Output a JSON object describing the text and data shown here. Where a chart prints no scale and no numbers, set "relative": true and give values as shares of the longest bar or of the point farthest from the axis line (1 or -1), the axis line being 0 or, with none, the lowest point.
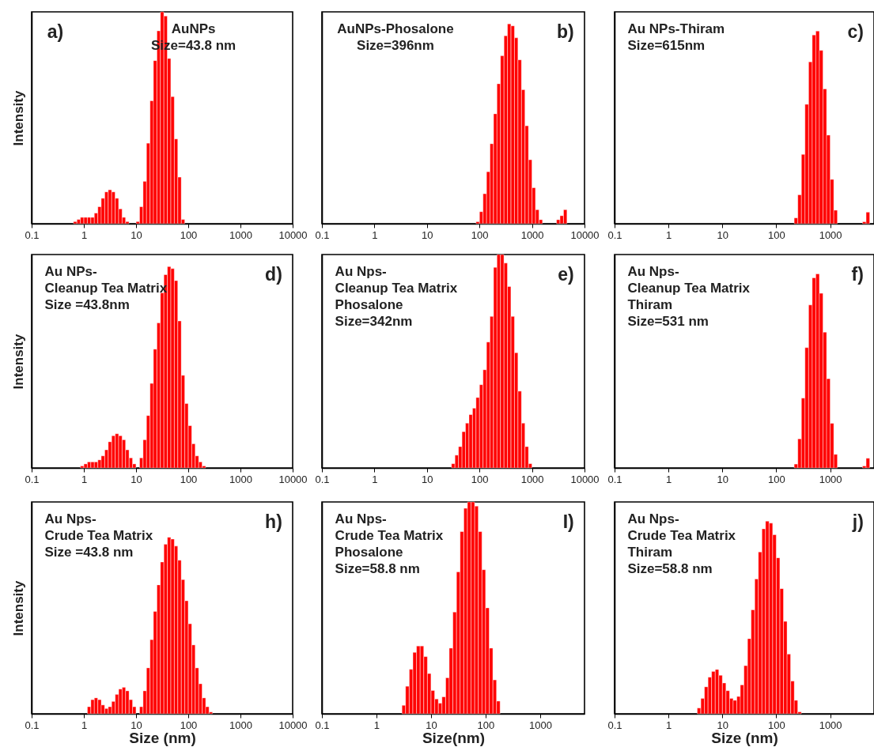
{
  "chart_data": [
    {
      "type": "bar",
      "relative": true,
      "log": "x",
      "tick_labels": "x",
      "ylabel": "Intensity",
      "color": "#ff0000",
      "xlim": [
        0.1,
        10000
      ],
      "xticks": [
        0.1,
        1,
        10,
        100,
        1000,
        10000
      ],
      "annotations": [
        "a)",
        "AuNPs",
        "Size=43.8 nm"
      ],
      "x": [
        0.681,
        0.795,
        0.926,
        1.08,
        1.26,
        1.47,
        1.71,
        2.0,
        2.32,
        2.71,
        3.16,
        3.68,
        4.3,
        5.01,
        5.84,
        6.81,
        10.8,
        12.6,
        14.7,
        17.1,
        20,
        23.2,
        27.1,
        31.6,
        36.8,
        43,
        50.1,
        58.4,
        68.1,
        79.5
      ],
      "values": [
        0.01,
        0.02,
        0.03,
        0.03,
        0.03,
        0.03,
        0.05,
        0.08,
        0.12,
        0.15,
        0.16,
        0.15,
        0.12,
        0.07,
        0.03,
        0.01,
        0.01,
        0.08,
        0.2,
        0.38,
        0.58,
        0.77,
        0.91,
        1.0,
        0.98,
        0.78,
        0.6,
        0.4,
        0.22,
        0.02
      ]
    },
    {
      "type": "bar",
      "relative": true,
      "log": "x",
      "tick_labels": "x",
      "color": "#ff0000",
      "xlim": [
        0.1,
        10000
      ],
      "xticks": [
        0.1,
        1,
        10,
        100,
        1000,
        10000
      ],
      "annotations": [
        "b)",
        "AuNPs-Phosalone",
        "Size=396nm"
      ],
      "x": [
        92.6,
        108,
        126,
        147,
        171,
        200,
        232,
        271,
        316,
        368,
        430,
        501,
        584,
        681,
        795,
        926,
        1080,
        1260,
        1470,
        3160,
        3680,
        4300
      ],
      "values": [
        0.01,
        0.06,
        0.15,
        0.26,
        0.4,
        0.55,
        0.7,
        0.84,
        0.94,
        1.0,
        0.99,
        0.93,
        0.82,
        0.67,
        0.49,
        0.32,
        0.18,
        0.07,
        0.02,
        0.02,
        0.04,
        0.07
      ]
    },
    {
      "type": "bar",
      "relative": true,
      "log": "x",
      "tick_labels": "x",
      "color": "#ff0000",
      "xlim": [
        0.1,
        6500
      ],
      "xticks": [
        0.1,
        1,
        10,
        100,
        1000
      ],
      "annotations": [
        "c)",
        "Au NPs-Thiram",
        "Size=615nm"
      ],
      "x": [
        232,
        271,
        316,
        368,
        430,
        501,
        584,
        681,
        795,
        926,
        1080,
        1260,
        4300,
        5010
      ],
      "values": [
        0.03,
        0.15,
        0.36,
        0.62,
        0.84,
        0.98,
        1.0,
        0.9,
        0.7,
        0.46,
        0.23,
        0.07,
        0.01,
        0.06
      ]
    },
    {
      "type": "bar",
      "relative": true,
      "log": "x",
      "tick_labels": "x",
      "ylabel": "Intensity",
      "color": "#ff0000",
      "xlim": [
        0.1,
        10000
      ],
      "xticks": [
        0.1,
        1,
        10,
        100,
        1000,
        10000
      ],
      "annotations": [
        "d)",
        "Au NPs-",
        "Cleanup Tea Matrix",
        "Size =43.8nm"
      ],
      "x": [
        0.926,
        1.08,
        1.26,
        1.47,
        1.71,
        2.0,
        2.32,
        2.71,
        3.16,
        3.68,
        4.3,
        5.01,
        5.84,
        6.81,
        7.95,
        9.26,
        12.6,
        14.7,
        17.1,
        20,
        23.2,
        27.1,
        31.6,
        36.8,
        43,
        50.1,
        58.4,
        68.1,
        79.5,
        92.6,
        108,
        126,
        147,
        171,
        200
      ],
      "values": [
        0.01,
        0.02,
        0.03,
        0.03,
        0.03,
        0.04,
        0.06,
        0.09,
        0.13,
        0.16,
        0.17,
        0.16,
        0.14,
        0.09,
        0.05,
        0.02,
        0.05,
        0.14,
        0.26,
        0.42,
        0.59,
        0.72,
        0.87,
        0.96,
        1.0,
        0.99,
        0.93,
        0.73,
        0.46,
        0.32,
        0.21,
        0.12,
        0.06,
        0.03,
        0.01
      ]
    },
    {
      "type": "bar",
      "relative": true,
      "log": "x",
      "tick_labels": "x",
      "color": "#ff0000",
      "xlim": [
        0.1,
        10000
      ],
      "xticks": [
        0.1,
        1,
        10,
        100,
        1000,
        10000
      ],
      "annotations": [
        "e)",
        "Au Nps-",
        "Cleanup Tea Matrix",
        "Phosalone",
        "Size=342nm"
      ],
      "x": [
        31.6,
        36.8,
        43,
        50.1,
        58.4,
        68.1,
        79.5,
        92.6,
        108,
        126,
        147,
        171,
        200,
        232,
        271,
        316,
        368,
        430,
        501,
        584,
        681,
        795,
        926
      ],
      "values": [
        0.02,
        0.06,
        0.1,
        0.17,
        0.21,
        0.25,
        0.28,
        0.33,
        0.39,
        0.46,
        0.59,
        0.71,
        0.94,
        1.0,
        1.0,
        0.96,
        0.85,
        0.71,
        0.54,
        0.36,
        0.21,
        0.1,
        0.02
      ]
    },
    {
      "type": "bar",
      "relative": true,
      "log": "x",
      "tick_labels": "x",
      "color": "#ff0000",
      "xlim": [
        0.1,
        6500
      ],
      "xticks": [
        0.1,
        1,
        10,
        100,
        1000
      ],
      "annotations": [
        "f)",
        "Au Nps-",
        "Cleanup Tea Matrix",
        "Thiram",
        "Size=531 nm"
      ],
      "x": [
        232,
        271,
        316,
        368,
        430,
        501,
        584,
        681,
        795,
        926,
        1080,
        1260,
        4300,
        5010
      ],
      "values": [
        0.02,
        0.15,
        0.36,
        0.62,
        0.84,
        0.98,
        1.0,
        0.9,
        0.7,
        0.46,
        0.23,
        0.07,
        0.01,
        0.05
      ]
    },
    {
      "type": "bar",
      "relative": true,
      "log": "x",
      "tick_labels": "x",
      "ylabel": "Intensity",
      "xlabel": "Size (nm)",
      "color": "#ff0000",
      "xlim": [
        0.1,
        10000
      ],
      "xticks": [
        0.1,
        1,
        10,
        100,
        1000,
        10000
      ],
      "annotations": [
        "h)",
        "Au Nps-",
        "Crude Tea Matrix",
        "Size =43.8 nm"
      ],
      "x": [
        1.26,
        1.47,
        1.71,
        2.0,
        2.32,
        2.71,
        3.16,
        3.68,
        4.3,
        5.01,
        5.84,
        6.81,
        7.95,
        9.26,
        12.6,
        14.7,
        17.1,
        20,
        23.2,
        27.1,
        31.6,
        36.8,
        43,
        50.1,
        58.4,
        68.1,
        79.5,
        92.6,
        108,
        126,
        147,
        171,
        200,
        232,
        271
      ],
      "values": [
        0.04,
        0.08,
        0.09,
        0.08,
        0.05,
        0.03,
        0.04,
        0.07,
        0.11,
        0.14,
        0.15,
        0.13,
        0.08,
        0.04,
        0.04,
        0.13,
        0.26,
        0.42,
        0.58,
        0.73,
        0.86,
        0.96,
        1.0,
        0.99,
        0.95,
        0.87,
        0.76,
        0.64,
        0.51,
        0.39,
        0.26,
        0.17,
        0.09,
        0.04,
        0.01
      ]
    },
    {
      "type": "bar",
      "relative": true,
      "log": "x",
      "tick_labels": "x",
      "xlabel": "Size(nm)",
      "color": "#ff0000",
      "xlim": [
        0.1,
        6500
      ],
      "xticks": [
        0.1,
        1,
        10,
        100,
        1000
      ],
      "annotations": [
        "I)",
        "Au Nps-",
        "Crude Tea Matrix",
        "Phosalone",
        "Size=58.8 nm"
      ],
      "x": [
        3.16,
        3.68,
        4.3,
        5.01,
        5.84,
        6.81,
        7.95,
        9.26,
        10.8,
        12.6,
        14.7,
        17.1,
        20,
        23.2,
        27.1,
        31.6,
        36.8,
        43,
        50.1,
        58.4,
        68.1,
        79.5,
        92.6,
        108,
        126,
        147,
        171
      ],
      "values": [
        0.04,
        0.13,
        0.21,
        0.29,
        0.32,
        0.32,
        0.27,
        0.19,
        0.11,
        0.07,
        0.05,
        0.08,
        0.17,
        0.31,
        0.48,
        0.67,
        0.86,
        0.97,
        1.0,
        1.0,
        0.98,
        0.86,
        0.68,
        0.5,
        0.31,
        0.16,
        0.06
      ]
    },
    {
      "type": "bar",
      "relative": true,
      "log": "x",
      "tick_labels": "x",
      "xlabel": "Size (nm)",
      "color": "#ff0000",
      "xlim": [
        0.1,
        6500
      ],
      "xticks": [
        0.1,
        1,
        10,
        100,
        1000
      ],
      "annotations": [
        "j)",
        "Au Nps-",
        "Crude Tea Matrix",
        "Thiram",
        "Size=58.8 nm"
      ],
      "x": [
        3.68,
        4.3,
        5.01,
        5.84,
        6.81,
        7.95,
        9.26,
        10.8,
        12.6,
        14.7,
        17.1,
        20,
        23.2,
        27.1,
        31.6,
        36.8,
        43,
        50.1,
        58.4,
        68.1,
        79.5,
        92.6,
        108,
        126,
        147,
        171,
        200,
        232,
        271
      ],
      "values": [
        0.03,
        0.08,
        0.14,
        0.19,
        0.22,
        0.23,
        0.2,
        0.16,
        0.12,
        0.08,
        0.07,
        0.09,
        0.15,
        0.25,
        0.39,
        0.54,
        0.7,
        0.84,
        0.96,
        1.0,
        0.99,
        0.93,
        0.81,
        0.65,
        0.48,
        0.31,
        0.17,
        0.07,
        0.01
      ]
    }
  ]
}
